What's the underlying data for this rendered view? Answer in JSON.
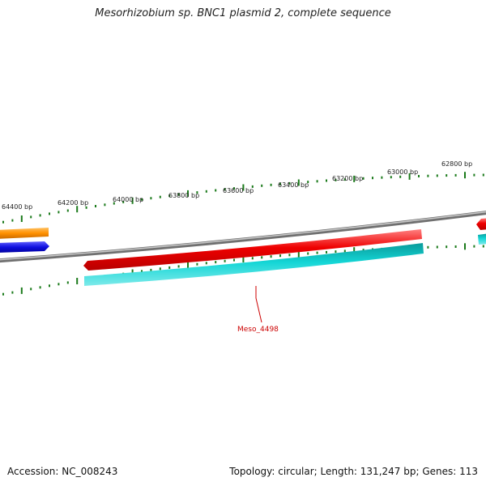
{
  "title": "Mesorhizobium sp. BNC1 plasmid 2, complete sequence",
  "footer": {
    "accession": "Accession: NC_008243",
    "summary": "Topology: circular; Length: 131,247 bp; Genes: 113"
  },
  "scale_labels": [
    "64400 bp",
    "64200 bp",
    "64000 bp",
    "63800 bp",
    "63600 bp",
    "63400 bp",
    "63200 bp",
    "63000 bp",
    "62800 bp"
  ],
  "gene_label": "Meso_4498",
  "colors": {
    "backbone": "#808080",
    "forward_gene": "#ee0000",
    "reverse_gene": "#1010e0",
    "cds_feature": "#10d0d0",
    "other_feature": "#ff9000",
    "tick": "#1a7a1a",
    "label": "#cc0000"
  }
}
